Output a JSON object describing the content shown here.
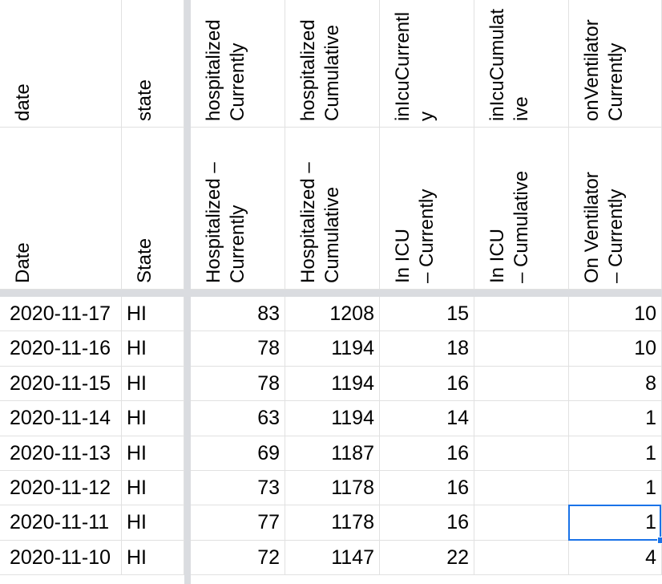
{
  "columns": [
    {
      "key": "date",
      "header1": "date",
      "header2": "Date",
      "align": "left"
    },
    {
      "key": "state",
      "header1": "state",
      "header2": "State",
      "align": "left"
    },
    {
      "key": "hosp_cur",
      "header1": "hospitalized\nCurrently",
      "header2": "Hospitalized –\nCurrently",
      "align": "right"
    },
    {
      "key": "hosp_cum",
      "header1": "hospitalized\nCumulative",
      "header2": "Hospitalized –\nCumulative",
      "align": "right"
    },
    {
      "key": "icu_cur",
      "header1": "inIcuCurrentl\ny",
      "header2": "In ICU\n– Currently",
      "align": "right"
    },
    {
      "key": "icu_cum",
      "header1": "inIcuCumulat\nive",
      "header2": "In ICU\n– Cumulative",
      "align": "right"
    },
    {
      "key": "vent_cur",
      "header1": "onVentilator\nCurrently",
      "header2": "On Ventilator\n– Currently",
      "align": "right"
    }
  ],
  "rows": [
    [
      "2020-11-17",
      "HI",
      "83",
      "1208",
      "15",
      "",
      "10"
    ],
    [
      "2020-11-16",
      "HI",
      "78",
      "1194",
      "18",
      "",
      "10"
    ],
    [
      "2020-11-15",
      "HI",
      "78",
      "1194",
      "16",
      "",
      "8"
    ],
    [
      "2020-11-14",
      "HI",
      "63",
      "1194",
      "14",
      "",
      "1"
    ],
    [
      "2020-11-13",
      "HI",
      "69",
      "1187",
      "16",
      "",
      "1"
    ],
    [
      "2020-11-12",
      "HI",
      "73",
      "1178",
      "16",
      "",
      "1"
    ],
    [
      "2020-11-11",
      "HI",
      "77",
      "1178",
      "16",
      "",
      "1"
    ],
    [
      "2020-11-10",
      "HI",
      "72",
      "1147",
      "22",
      "",
      "4"
    ]
  ],
  "selection": {
    "row": 6,
    "col": 6
  },
  "colors": {
    "gridline": "#e1e1e1",
    "freeze": "#dadce0",
    "selection": "#1a73e8"
  }
}
